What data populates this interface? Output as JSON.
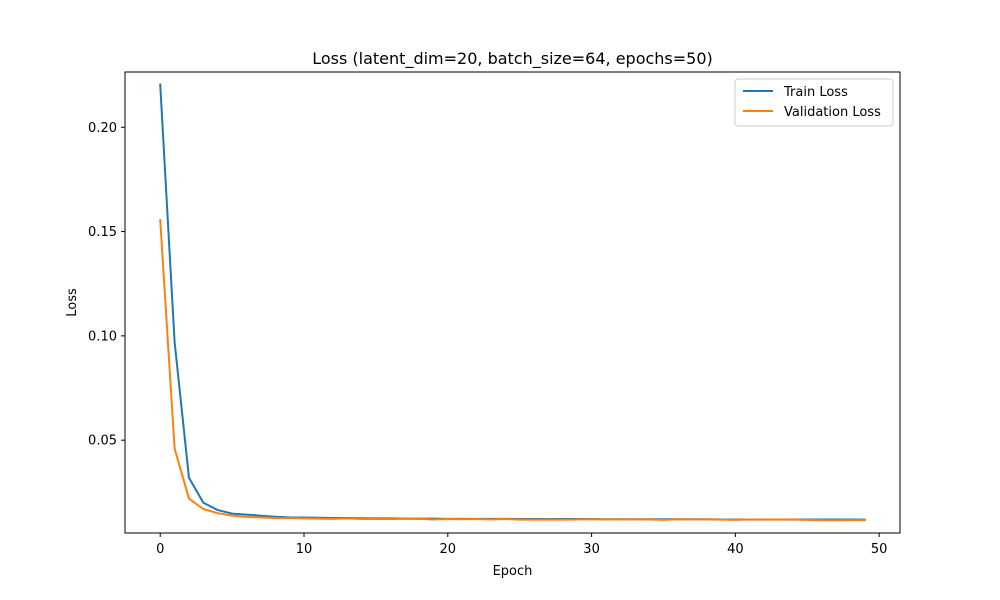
{
  "chart_data": {
    "type": "line",
    "title": "Loss (latent_dim=20, batch_size=64, epochs=50)",
    "xlabel": "Epoch",
    "ylabel": "Loss",
    "xlim": [
      -2.45,
      51.45
    ],
    "ylim": [
      0.0055,
      0.2265
    ],
    "xticks": [
      0,
      10,
      20,
      30,
      40,
      50
    ],
    "xtick_labels": [
      "0",
      "10",
      "20",
      "30",
      "40",
      "50"
    ],
    "yticks": [
      0.05,
      0.1,
      0.15,
      0.2
    ],
    "ytick_labels": [
      "0.05",
      "0.10",
      "0.15",
      "0.20"
    ],
    "grid": false,
    "legend_position": "top-right",
    "x": [
      0,
      1,
      2,
      3,
      4,
      5,
      6,
      7,
      8,
      9,
      10,
      11,
      12,
      13,
      14,
      15,
      16,
      17,
      18,
      19,
      20,
      21,
      22,
      23,
      24,
      25,
      26,
      27,
      28,
      29,
      30,
      31,
      32,
      33,
      34,
      35,
      36,
      37,
      38,
      39,
      40,
      41,
      42,
      43,
      44,
      45,
      46,
      47,
      48,
      49
    ],
    "series": [
      {
        "name": "Train Loss",
        "color": "#1f77b4",
        "values": [
          0.2205,
          0.097,
          0.032,
          0.02,
          0.0165,
          0.0148,
          0.0143,
          0.0138,
          0.0133,
          0.013,
          0.0129,
          0.0128,
          0.0127,
          0.0127,
          0.0126,
          0.0125,
          0.0125,
          0.0124,
          0.0124,
          0.0124,
          0.0123,
          0.0123,
          0.0123,
          0.0123,
          0.0123,
          0.0122,
          0.0122,
          0.0122,
          0.0122,
          0.0122,
          0.0122,
          0.0121,
          0.0121,
          0.0121,
          0.0121,
          0.0121,
          0.0121,
          0.0121,
          0.0121,
          0.012,
          0.012,
          0.012,
          0.012,
          0.012,
          0.012,
          0.012,
          0.012,
          0.012,
          0.012,
          0.0119
        ]
      },
      {
        "name": "Validation Loss",
        "color": "#ff7f0e",
        "values": [
          0.1555,
          0.046,
          0.022,
          0.017,
          0.015,
          0.0138,
          0.0132,
          0.013,
          0.0127,
          0.0127,
          0.0125,
          0.0124,
          0.0123,
          0.0125,
          0.0122,
          0.0122,
          0.0122,
          0.0123,
          0.0123,
          0.012,
          0.0122,
          0.0121,
          0.0122,
          0.012,
          0.0122,
          0.0119,
          0.0119,
          0.012,
          0.0119,
          0.012,
          0.0121,
          0.012,
          0.0121,
          0.012,
          0.012,
          0.0118,
          0.0121,
          0.012,
          0.012,
          0.0119,
          0.0118,
          0.012,
          0.0119,
          0.012,
          0.0119,
          0.0118,
          0.0116,
          0.0116,
          0.0117,
          0.0117
        ]
      }
    ]
  }
}
